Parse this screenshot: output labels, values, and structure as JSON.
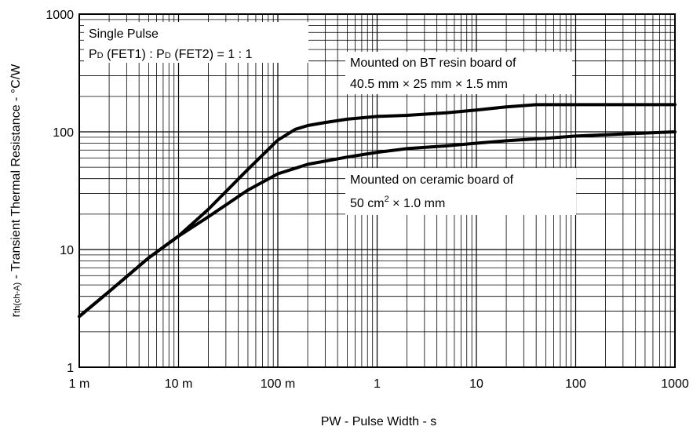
{
  "chart_data": {
    "type": "line",
    "xscale": "log",
    "yscale": "log",
    "xlim": [
      0.001,
      1000
    ],
    "ylim": [
      1,
      1000
    ],
    "grid": true,
    "xticks": [
      {
        "value": 0.001,
        "label": "1 m"
      },
      {
        "value": 0.01,
        "label": "10 m"
      },
      {
        "value": 0.1,
        "label": "100 m"
      },
      {
        "value": 1,
        "label": "1"
      },
      {
        "value": 10,
        "label": "10"
      },
      {
        "value": 100,
        "label": "100"
      },
      {
        "value": 1000,
        "label": "1000"
      }
    ],
    "yticks": [
      {
        "value": 1,
        "label": "1"
      },
      {
        "value": 10,
        "label": "10"
      },
      {
        "value": 100,
        "label": "100"
      },
      {
        "value": 1000,
        "label": "1000"
      }
    ],
    "xlabel": "PW - Pulse Width - s",
    "ylabel": {
      "prefix": "r",
      "subscript": "th(ch-A)",
      "suffix": " - Transient Thermal Resistance - °C/W"
    },
    "conditions": {
      "line1": "Single Pulse",
      "line2": {
        "p1": "P",
        "s1": "D",
        "mid": " (FET1) : P",
        "s2": "D",
        "end": " (FET2) = 1 : 1"
      }
    },
    "series": [
      {
        "label_lines": [
          "Mounted on BT resin board of",
          "40.5 mm × 25 mm × 1.5 mm"
        ],
        "points": [
          [
            0.001,
            2.7
          ],
          [
            0.002,
            4.4
          ],
          [
            0.005,
            8.5
          ],
          [
            0.01,
            13
          ],
          [
            0.02,
            22
          ],
          [
            0.05,
            48
          ],
          [
            0.1,
            85
          ],
          [
            0.15,
            105
          ],
          [
            0.2,
            113
          ],
          [
            0.3,
            120
          ],
          [
            0.5,
            128
          ],
          [
            1,
            135
          ],
          [
            2,
            138
          ],
          [
            5,
            145
          ],
          [
            10,
            153
          ],
          [
            20,
            163
          ],
          [
            40,
            170
          ],
          [
            100,
            170
          ],
          [
            300,
            170
          ],
          [
            1000,
            170
          ]
        ]
      },
      {
        "label_lines": [
          "Mounted on ceramic board of",
          "50 cm",
          "2",
          " × 1.0 mm"
        ],
        "points": [
          [
            0.001,
            2.7
          ],
          [
            0.002,
            4.4
          ],
          [
            0.005,
            8.5
          ],
          [
            0.01,
            13
          ],
          [
            0.02,
            19
          ],
          [
            0.05,
            32
          ],
          [
            0.1,
            44
          ],
          [
            0.2,
            53
          ],
          [
            0.5,
            61
          ],
          [
            1,
            67
          ],
          [
            2,
            72
          ],
          [
            5,
            76
          ],
          [
            10,
            80
          ],
          [
            20,
            84
          ],
          [
            50,
            88
          ],
          [
            100,
            92
          ],
          [
            300,
            96
          ],
          [
            1000,
            100
          ]
        ]
      }
    ]
  }
}
